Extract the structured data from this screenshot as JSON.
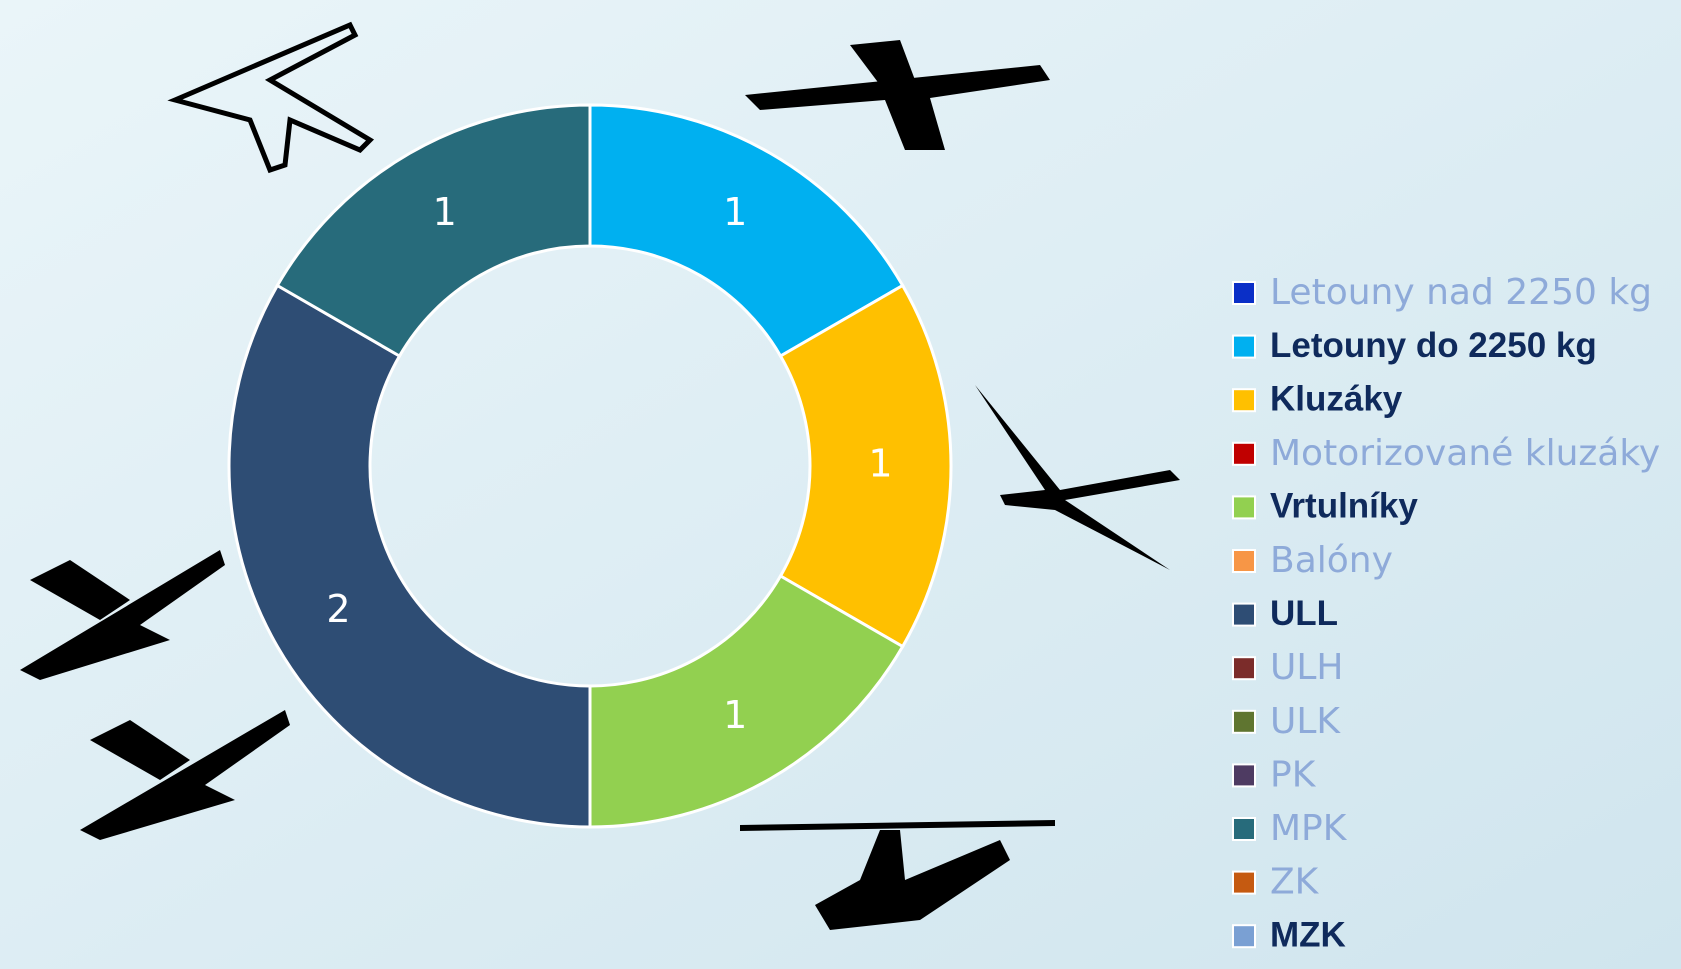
{
  "chart_data": {
    "type": "doughnut",
    "categories": [
      "Letouny nad 2250 kg",
      "Letouny do 2250 kg",
      "Kluzáky",
      "Motorizované kluzáky",
      "Vrtulníky",
      "Balóny",
      "ULL",
      "ULH",
      "ULK",
      "PK",
      "MPK",
      "ZK",
      "MZK"
    ],
    "values": [
      0,
      1,
      1,
      0,
      1,
      0,
      2,
      0,
      0,
      0,
      1,
      0,
      0
    ],
    "colors": [
      "#0a2fc7",
      "#00b0f0",
      "#ffc000",
      "#c00000",
      "#92d050",
      "#f79646",
      "#2e4d74",
      "#7b2c2a",
      "#5f7530",
      "#4e3b62",
      "#276b7b",
      "#c55a11",
      "#7aa0d3"
    ],
    "legend_bold": [
      false,
      true,
      true,
      false,
      true,
      false,
      true,
      false,
      false,
      false,
      false,
      false,
      true
    ],
    "legend": "right"
  }
}
